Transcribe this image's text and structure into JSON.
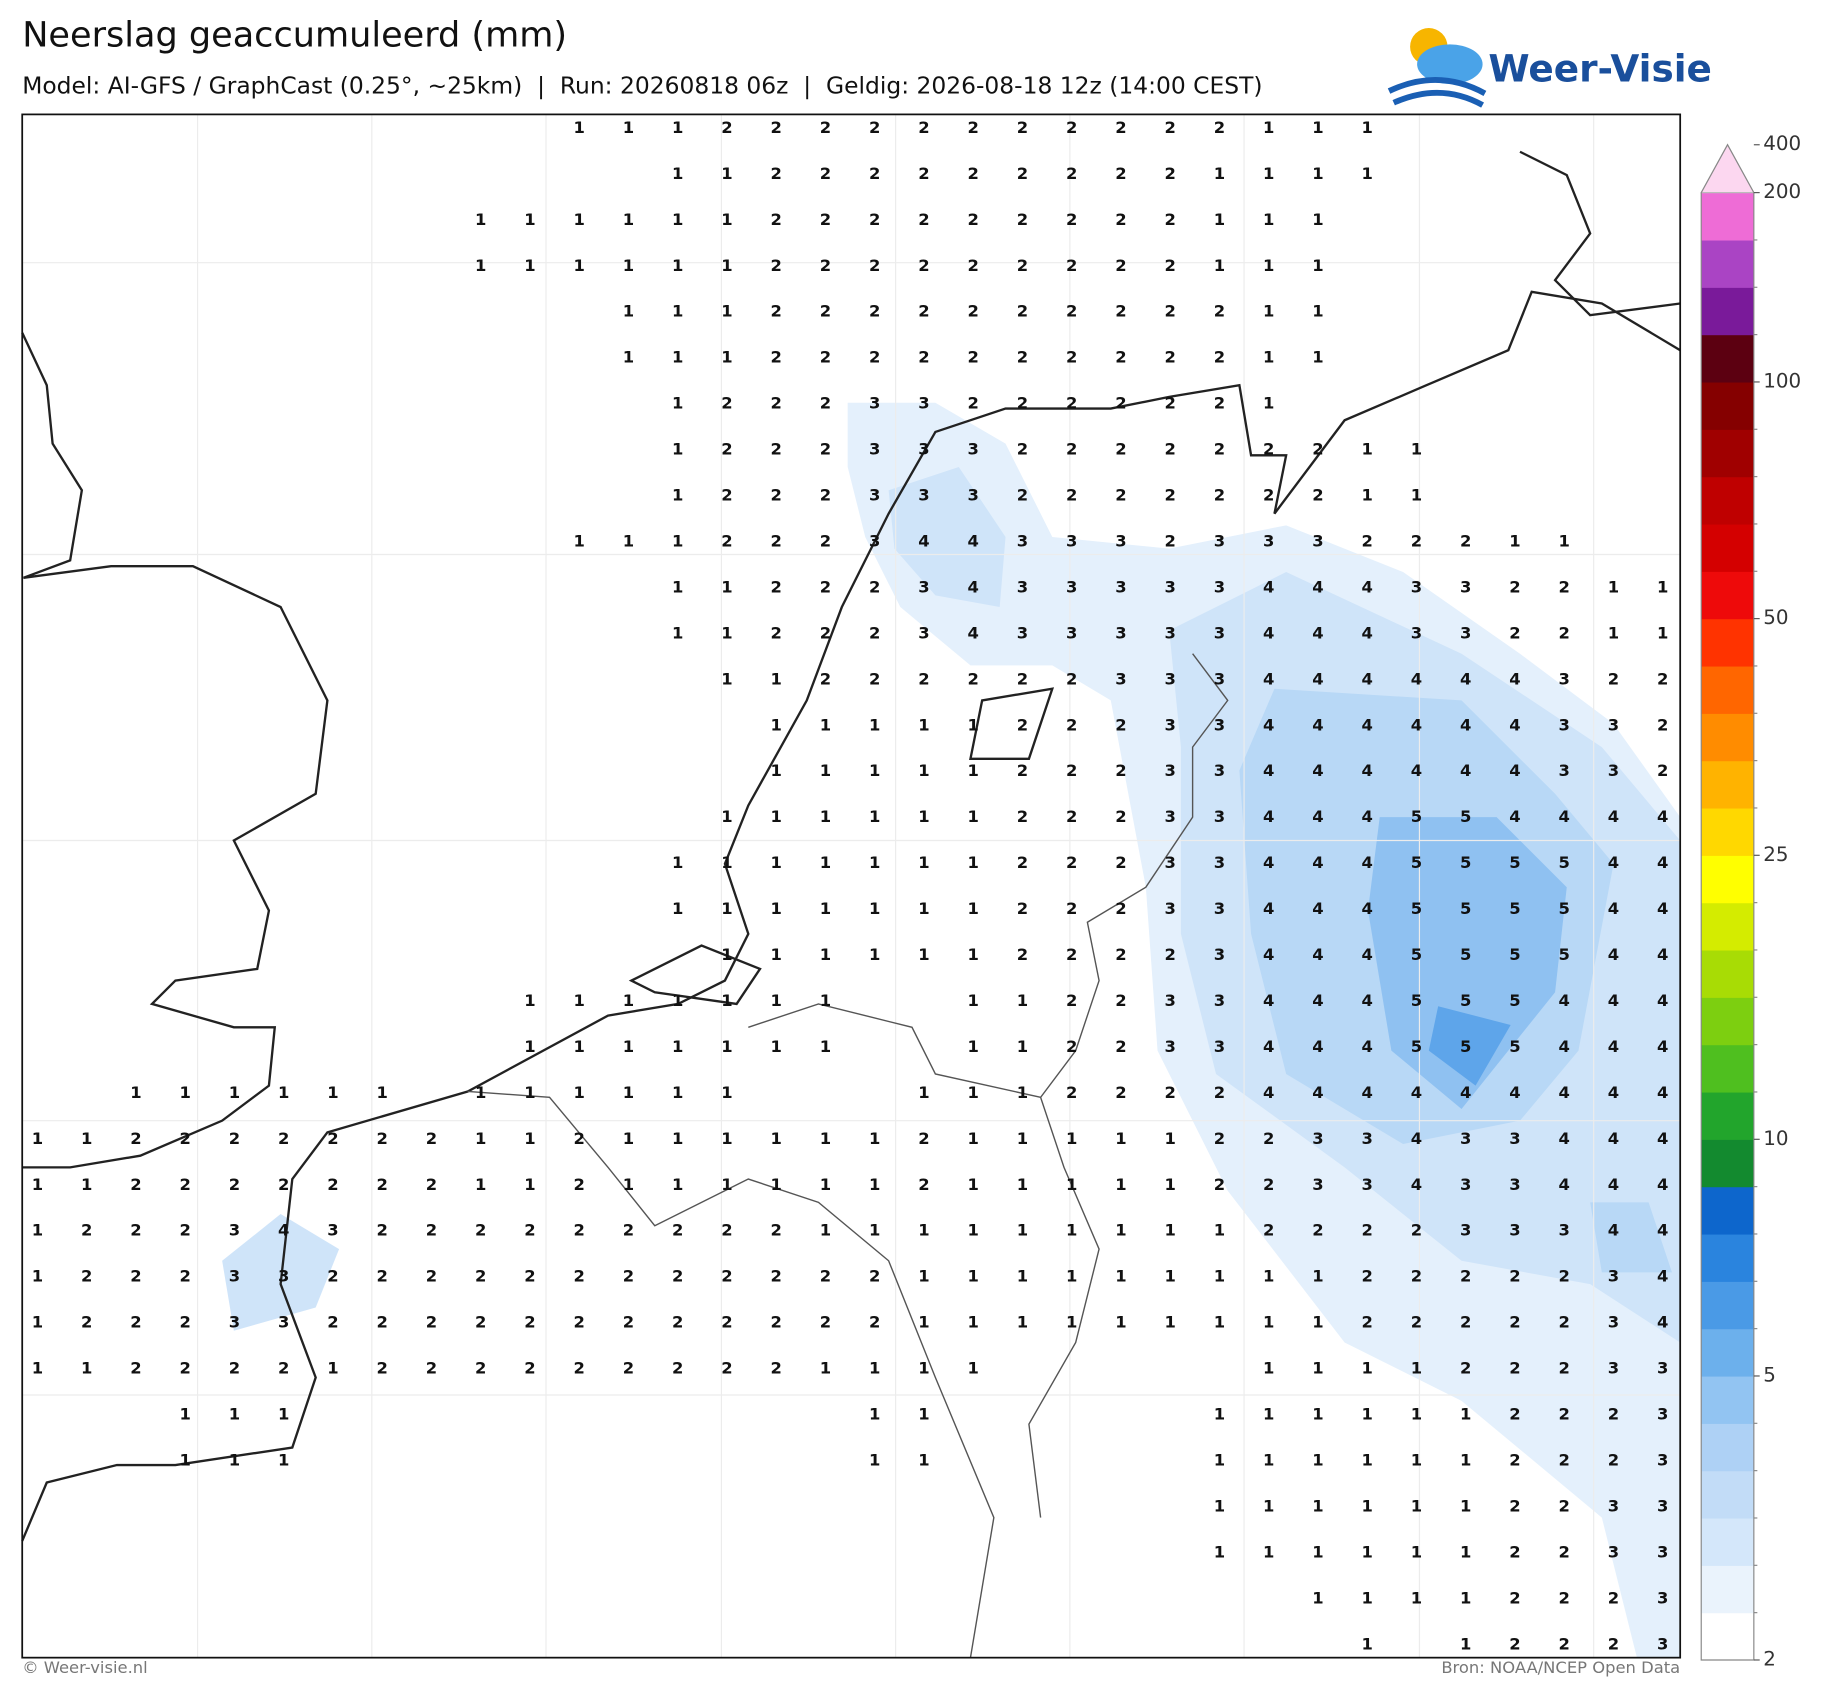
{
  "header": {
    "title": "Neerslag geaccumuleerd (mm)",
    "subtitle": "Model: AI-GFS / GraphCast (0.25°, ~25km)  |  Run: 20260818 06z  |  Geldig: 2026-08-18 12z (14:00 CEST)",
    "logo": "Weer-Visie"
  },
  "grid": [
    [
      null,
      null,
      null,
      null,
      null,
      null,
      null,
      null,
      null,
      null,
      null,
      1,
      1,
      1,
      2,
      2,
      2,
      2,
      2,
      2,
      2,
      2,
      2,
      2,
      2,
      1,
      1,
      1,
      null,
      null,
      null,
      null,
      null,
      null
    ],
    [
      null,
      null,
      null,
      null,
      null,
      null,
      null,
      null,
      null,
      null,
      null,
      null,
      null,
      1,
      1,
      2,
      2,
      2,
      2,
      2,
      2,
      2,
      2,
      2,
      1,
      1,
      1,
      1,
      null,
      null,
      null,
      null,
      null,
      null
    ],
    [
      null,
      null,
      null,
      null,
      null,
      null,
      null,
      null,
      null,
      1,
      1,
      1,
      1,
      1,
      1,
      2,
      2,
      2,
      2,
      2,
      2,
      2,
      2,
      2,
      1,
      1,
      1,
      null,
      null,
      null,
      null,
      null,
      null,
      null
    ],
    [
      null,
      null,
      null,
      null,
      null,
      null,
      null,
      null,
      null,
      1,
      1,
      1,
      1,
      1,
      1,
      2,
      2,
      2,
      2,
      2,
      2,
      2,
      2,
      2,
      1,
      1,
      1,
      null,
      null,
      null,
      null,
      null,
      null,
      null
    ],
    [
      null,
      null,
      null,
      null,
      null,
      null,
      null,
      null,
      null,
      null,
      null,
      null,
      1,
      1,
      1,
      2,
      2,
      2,
      2,
      2,
      2,
      2,
      2,
      2,
      2,
      1,
      1,
      null,
      null,
      null,
      null,
      null,
      null,
      null
    ],
    [
      null,
      null,
      null,
      null,
      null,
      null,
      null,
      null,
      null,
      null,
      null,
      null,
      1,
      1,
      1,
      2,
      2,
      2,
      2,
      2,
      2,
      2,
      2,
      2,
      2,
      1,
      1,
      null,
      null,
      null,
      null,
      null,
      null,
      null
    ],
    [
      null,
      null,
      null,
      null,
      null,
      null,
      null,
      null,
      null,
      null,
      null,
      null,
      null,
      1,
      2,
      2,
      2,
      3,
      3,
      2,
      2,
      2,
      2,
      2,
      2,
      1,
      null,
      null,
      null,
      null,
      null,
      null,
      null,
      null
    ],
    [
      null,
      null,
      null,
      null,
      null,
      null,
      null,
      null,
      null,
      null,
      null,
      null,
      null,
      1,
      2,
      2,
      2,
      3,
      3,
      3,
      2,
      2,
      2,
      2,
      2,
      2,
      2,
      1,
      1,
      null,
      null,
      null,
      null,
      null
    ],
    [
      null,
      null,
      null,
      null,
      null,
      null,
      null,
      null,
      null,
      null,
      null,
      null,
      null,
      1,
      2,
      2,
      2,
      3,
      3,
      3,
      2,
      2,
      2,
      2,
      2,
      2,
      2,
      1,
      1,
      null,
      null,
      null,
      null,
      null
    ],
    [
      null,
      null,
      null,
      null,
      null,
      null,
      null,
      null,
      null,
      null,
      null,
      1,
      1,
      1,
      2,
      2,
      2,
      3,
      4,
      4,
      3,
      3,
      3,
      2,
      3,
      3,
      3,
      2,
      2,
      2,
      1,
      1,
      null,
      null
    ],
    [
      null,
      null,
      null,
      null,
      null,
      null,
      null,
      null,
      null,
      null,
      null,
      null,
      null,
      1,
      1,
      2,
      2,
      2,
      3,
      4,
      3,
      3,
      3,
      3,
      3,
      4,
      4,
      4,
      3,
      3,
      2,
      2,
      1,
      1
    ],
    [
      null,
      null,
      null,
      null,
      null,
      null,
      null,
      null,
      null,
      null,
      null,
      null,
      null,
      1,
      1,
      2,
      2,
      2,
      3,
      4,
      3,
      3,
      3,
      3,
      3,
      4,
      4,
      4,
      3,
      3,
      2,
      2,
      1,
      1
    ],
    [
      null,
      null,
      null,
      null,
      null,
      null,
      null,
      null,
      null,
      null,
      null,
      null,
      null,
      null,
      1,
      1,
      2,
      2,
      2,
      2,
      2,
      2,
      3,
      3,
      3,
      4,
      4,
      4,
      4,
      4,
      4,
      3,
      2,
      2
    ],
    [
      null,
      null,
      null,
      null,
      null,
      null,
      null,
      null,
      null,
      null,
      null,
      null,
      null,
      null,
      null,
      1,
      1,
      1,
      1,
      1,
      2,
      2,
      2,
      3,
      3,
      4,
      4,
      4,
      4,
      4,
      4,
      3,
      3,
      2
    ],
    [
      null,
      null,
      null,
      null,
      null,
      null,
      null,
      null,
      null,
      null,
      null,
      null,
      null,
      null,
      null,
      1,
      1,
      1,
      1,
      1,
      2,
      2,
      2,
      3,
      3,
      4,
      4,
      4,
      4,
      4,
      4,
      3,
      3,
      2
    ],
    [
      null,
      null,
      null,
      null,
      null,
      null,
      null,
      null,
      null,
      null,
      null,
      null,
      null,
      null,
      1,
      1,
      1,
      1,
      1,
      1,
      2,
      2,
      2,
      3,
      3,
      4,
      4,
      4,
      5,
      5,
      4,
      4,
      4,
      4
    ],
    [
      null,
      null,
      null,
      null,
      null,
      null,
      null,
      null,
      null,
      null,
      null,
      null,
      null,
      1,
      1,
      1,
      1,
      1,
      1,
      1,
      2,
      2,
      2,
      3,
      3,
      4,
      4,
      4,
      5,
      5,
      5,
      5,
      4,
      4
    ],
    [
      null,
      null,
      null,
      null,
      null,
      null,
      null,
      null,
      null,
      null,
      null,
      null,
      null,
      1,
      1,
      1,
      1,
      1,
      1,
      1,
      2,
      2,
      2,
      3,
      3,
      4,
      4,
      4,
      5,
      5,
      5,
      5,
      4,
      4
    ],
    [
      null,
      null,
      null,
      null,
      null,
      null,
      null,
      null,
      null,
      null,
      null,
      null,
      null,
      null,
      1,
      1,
      1,
      1,
      1,
      1,
      2,
      2,
      2,
      2,
      3,
      4,
      4,
      4,
      5,
      5,
      5,
      5,
      4,
      4
    ],
    [
      null,
      null,
      null,
      null,
      null,
      null,
      null,
      null,
      null,
      null,
      1,
      1,
      1,
      1,
      1,
      1,
      1,
      null,
      null,
      1,
      1,
      2,
      2,
      3,
      3,
      4,
      4,
      4,
      5,
      5,
      5,
      4,
      4,
      4
    ],
    [
      null,
      null,
      null,
      null,
      null,
      null,
      null,
      null,
      null,
      null,
      1,
      1,
      1,
      1,
      1,
      1,
      1,
      null,
      null,
      1,
      1,
      2,
      2,
      3,
      3,
      4,
      4,
      4,
      5,
      5,
      5,
      4,
      4,
      4
    ],
    [
      null,
      null,
      1,
      1,
      1,
      1,
      1,
      1,
      null,
      1,
      1,
      1,
      1,
      1,
      1,
      null,
      null,
      null,
      1,
      1,
      1,
      2,
      2,
      2,
      2,
      4,
      4,
      4,
      4,
      4,
      4,
      4,
      4,
      4
    ],
    [
      1,
      1,
      2,
      2,
      2,
      2,
      2,
      2,
      2,
      1,
      1,
      2,
      1,
      1,
      1,
      1,
      1,
      1,
      2,
      1,
      1,
      1,
      1,
      1,
      2,
      2,
      3,
      3,
      4,
      3,
      3,
      4,
      4,
      4
    ],
    [
      1,
      1,
      2,
      2,
      2,
      2,
      2,
      2,
      2,
      1,
      1,
      2,
      1,
      1,
      1,
      1,
      1,
      1,
      2,
      1,
      1,
      1,
      1,
      1,
      2,
      2,
      3,
      3,
      4,
      3,
      3,
      4,
      4,
      4
    ],
    [
      1,
      2,
      2,
      2,
      3,
      4,
      3,
      2,
      2,
      2,
      2,
      2,
      2,
      2,
      2,
      2,
      1,
      1,
      1,
      1,
      1,
      1,
      1,
      1,
      1,
      2,
      2,
      2,
      2,
      3,
      3,
      3,
      4,
      4
    ],
    [
      1,
      2,
      2,
      2,
      3,
      3,
      2,
      2,
      2,
      2,
      2,
      2,
      2,
      2,
      2,
      2,
      2,
      2,
      1,
      1,
      1,
      1,
      1,
      1,
      1,
      1,
      1,
      2,
      2,
      2,
      2,
      2,
      3,
      4
    ],
    [
      1,
      2,
      2,
      2,
      3,
      3,
      2,
      2,
      2,
      2,
      2,
      2,
      2,
      2,
      2,
      2,
      2,
      2,
      1,
      1,
      1,
      1,
      1,
      1,
      1,
      1,
      1,
      2,
      2,
      2,
      2,
      2,
      3,
      4
    ],
    [
      1,
      1,
      2,
      2,
      2,
      2,
      1,
      2,
      2,
      2,
      2,
      2,
      2,
      2,
      2,
      2,
      1,
      1,
      1,
      1,
      null,
      null,
      null,
      null,
      null,
      1,
      1,
      1,
      1,
      2,
      2,
      2,
      3,
      3
    ],
    [
      null,
      null,
      null,
      1,
      1,
      1,
      null,
      null,
      null,
      null,
      null,
      null,
      null,
      null,
      null,
      null,
      null,
      1,
      1,
      null,
      null,
      null,
      null,
      null,
      1,
      1,
      1,
      1,
      1,
      1,
      2,
      2,
      2,
      3
    ],
    [
      null,
      null,
      null,
      1,
      1,
      1,
      null,
      null,
      null,
      null,
      null,
      null,
      null,
      null,
      null,
      null,
      null,
      1,
      1,
      null,
      null,
      null,
      null,
      null,
      1,
      1,
      1,
      1,
      1,
      1,
      2,
      2,
      2,
      3
    ],
    [
      null,
      null,
      null,
      null,
      null,
      null,
      null,
      null,
      null,
      null,
      null,
      null,
      null,
      null,
      null,
      null,
      null,
      null,
      null,
      null,
      null,
      null,
      null,
      null,
      1,
      1,
      1,
      1,
      1,
      1,
      2,
      2,
      3,
      3
    ],
    [
      null,
      null,
      null,
      null,
      null,
      null,
      null,
      null,
      null,
      null,
      null,
      null,
      null,
      null,
      null,
      null,
      null,
      null,
      null,
      null,
      null,
      null,
      null,
      null,
      1,
      1,
      1,
      1,
      1,
      1,
      2,
      2,
      3,
      3
    ],
    [
      null,
      null,
      null,
      null,
      null,
      null,
      null,
      null,
      null,
      null,
      null,
      null,
      null,
      null,
      null,
      null,
      null,
      null,
      null,
      null,
      null,
      null,
      null,
      null,
      null,
      null,
      1,
      1,
      1,
      1,
      2,
      2,
      2,
      3
    ],
    [
      null,
      null,
      null,
      null,
      null,
      null,
      null,
      null,
      null,
      null,
      null,
      null,
      null,
      null,
      null,
      null,
      null,
      null,
      null,
      null,
      null,
      null,
      null,
      null,
      null,
      null,
      null,
      1,
      null,
      1,
      2,
      2,
      2,
      3
    ]
  ],
  "colorbar": {
    "colors": [
      "#ffffff",
      "#eaf3fc",
      "#d4e7fa",
      "#c2dcf7",
      "#aed1f5",
      "#92c4f2",
      "#6cb0ec",
      "#4a9ae6",
      "#2a84de",
      "#0d66cc",
      "#138a2f",
      "#22a52c",
      "#4fbf1f",
      "#7dcf10",
      "#a8dc05",
      "#d4ec00",
      "#ffff00",
      "#ffd800",
      "#ffb300",
      "#ff8c00",
      "#ff6600",
      "#ff3300",
      "#ee0a0a",
      "#d40000",
      "#bf0000",
      "#a00000",
      "#850000",
      "#5c0011",
      "#7a1a9a",
      "#aa44c4",
      "#ee6cd6"
    ],
    "extend_color": "#fcd7f0",
    "ticks": [
      2,
      5,
      10,
      25,
      50,
      100,
      200,
      400
    ]
  },
  "footer": {
    "left": "© Weer-visie.nl",
    "right": "Bron: NOAA/NCEP Open Data"
  }
}
